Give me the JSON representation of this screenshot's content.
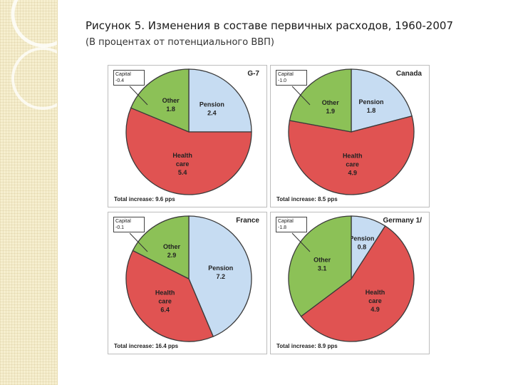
{
  "title": "Рисунок 5. Изменения в составе первичных расходов, 1960-2007",
  "subtitle": "(В процентах от потенциального ВВП)",
  "colors": {
    "pension": "#c6dcf2",
    "health": "#e05352",
    "other": "#8cc157",
    "outline": "#3a3a3a"
  },
  "chart_data": [
    {
      "type": "pie",
      "title": "G-7",
      "capital": {
        "label": "Capital",
        "value": "-0.4"
      },
      "total": "Total increase: 9.6 pps",
      "slices": [
        {
          "category": "Pension",
          "value": 2.4,
          "value_label": "2.4",
          "name_lines": [
            "Pension"
          ]
        },
        {
          "category": "Health care",
          "value": 5.4,
          "value_label": "5.4",
          "name_lines": [
            "Health",
            "care"
          ]
        },
        {
          "category": "Other",
          "value": 1.8,
          "value_label": "1.8",
          "name_lines": [
            "Other"
          ]
        }
      ]
    },
    {
      "type": "pie",
      "title": "Canada",
      "capital": {
        "label": "Capital",
        "value": "-1.0"
      },
      "total": "Total increase: 8.5 pps",
      "slices": [
        {
          "category": "Pension",
          "value": 1.8,
          "value_label": "1.8",
          "name_lines": [
            "Pension"
          ]
        },
        {
          "category": "Health care",
          "value": 4.9,
          "value_label": "4.9",
          "name_lines": [
            "Health",
            "care"
          ]
        },
        {
          "category": "Other",
          "value": 1.9,
          "value_label": "1.9",
          "name_lines": [
            "Other"
          ]
        }
      ]
    },
    {
      "type": "pie",
      "title": "France",
      "capital": {
        "label": "Capital",
        "value": "-0.1"
      },
      "total": "Total increase: 16.4 pps",
      "slices": [
        {
          "category": "Pension",
          "value": 7.2,
          "value_label": "7.2",
          "name_lines": [
            "Pension"
          ]
        },
        {
          "category": "Health care",
          "value": 6.4,
          "value_label": "6.4",
          "name_lines": [
            "Health",
            "care"
          ]
        },
        {
          "category": "Other",
          "value": 2.9,
          "value_label": "2.9",
          "name_lines": [
            "Other"
          ]
        }
      ]
    },
    {
      "type": "pie",
      "title": "Germany 1/",
      "capital": {
        "label": "Capital",
        "value": "-1.8"
      },
      "total": "Total increase: 8.9 pps",
      "slices": [
        {
          "category": "Pension",
          "value": 0.8,
          "value_label": "0.8",
          "name_lines": [
            "Pension"
          ]
        },
        {
          "category": "Health care",
          "value": 4.9,
          "value_label": "4.9",
          "name_lines": [
            "Health",
            "care"
          ]
        },
        {
          "category": "Other",
          "value": 3.1,
          "value_label": "3.1",
          "name_lines": [
            "Other"
          ]
        }
      ]
    }
  ]
}
